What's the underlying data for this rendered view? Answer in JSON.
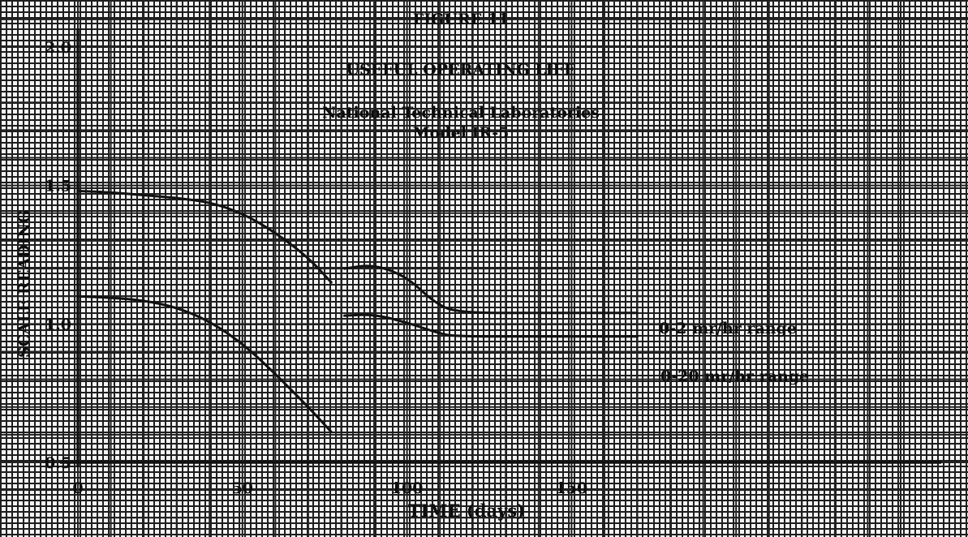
{
  "chart_data": {
    "type": "line",
    "title": "FIGURE 11",
    "subtitle_lines": [
      "USEFUL OPERATING LIFE",
      "National Technical Laboratories",
      "Model IR-5"
    ],
    "xlabel": "TIME (days)",
    "ylabel": "SCALE READING",
    "xlim": [
      0,
      250
    ],
    "ylim": [
      0.5,
      2.0
    ],
    "x_ticks": [
      "0",
      "50",
      "100",
      "150"
    ],
    "y_ticks": [
      "0.5",
      "1.0",
      "1.5",
      "2.0"
    ],
    "grid": true,
    "series": [
      {
        "name": "0-2 mr/hr range",
        "segments": [
          [
            [
              0,
              1.48
            ],
            [
              10,
              1.475
            ],
            [
              20,
              1.465
            ],
            [
              30,
              1.455
            ],
            [
              40,
              1.44
            ],
            [
              50,
              1.4
            ],
            [
              60,
              1.33
            ],
            [
              70,
              1.24
            ],
            [
              77,
              1.15
            ]
          ],
          [
            [
              81,
              1.2
            ],
            [
              90,
              1.215
            ],
            [
              100,
              1.17
            ],
            [
              108,
              1.08
            ],
            [
              115,
              1.04
            ],
            [
              140,
              1.04
            ],
            [
              170,
              1.04
            ]
          ]
        ]
      },
      {
        "name": "0-20 mr/hr range",
        "segments": [
          [
            [
              0,
              1.1
            ],
            [
              10,
              1.095
            ],
            [
              20,
              1.085
            ],
            [
              30,
              1.06
            ],
            [
              40,
              1.01
            ],
            [
              50,
              0.93
            ],
            [
              60,
              0.82
            ],
            [
              70,
              0.7
            ],
            [
              77,
              0.61
            ]
          ],
          [
            [
              81,
              1.03
            ],
            [
              90,
              1.035
            ],
            [
              100,
              1.005
            ],
            [
              110,
              0.965
            ],
            [
              115,
              0.955
            ],
            [
              140,
              0.955
            ],
            [
              170,
              0.955
            ]
          ]
        ]
      }
    ]
  }
}
